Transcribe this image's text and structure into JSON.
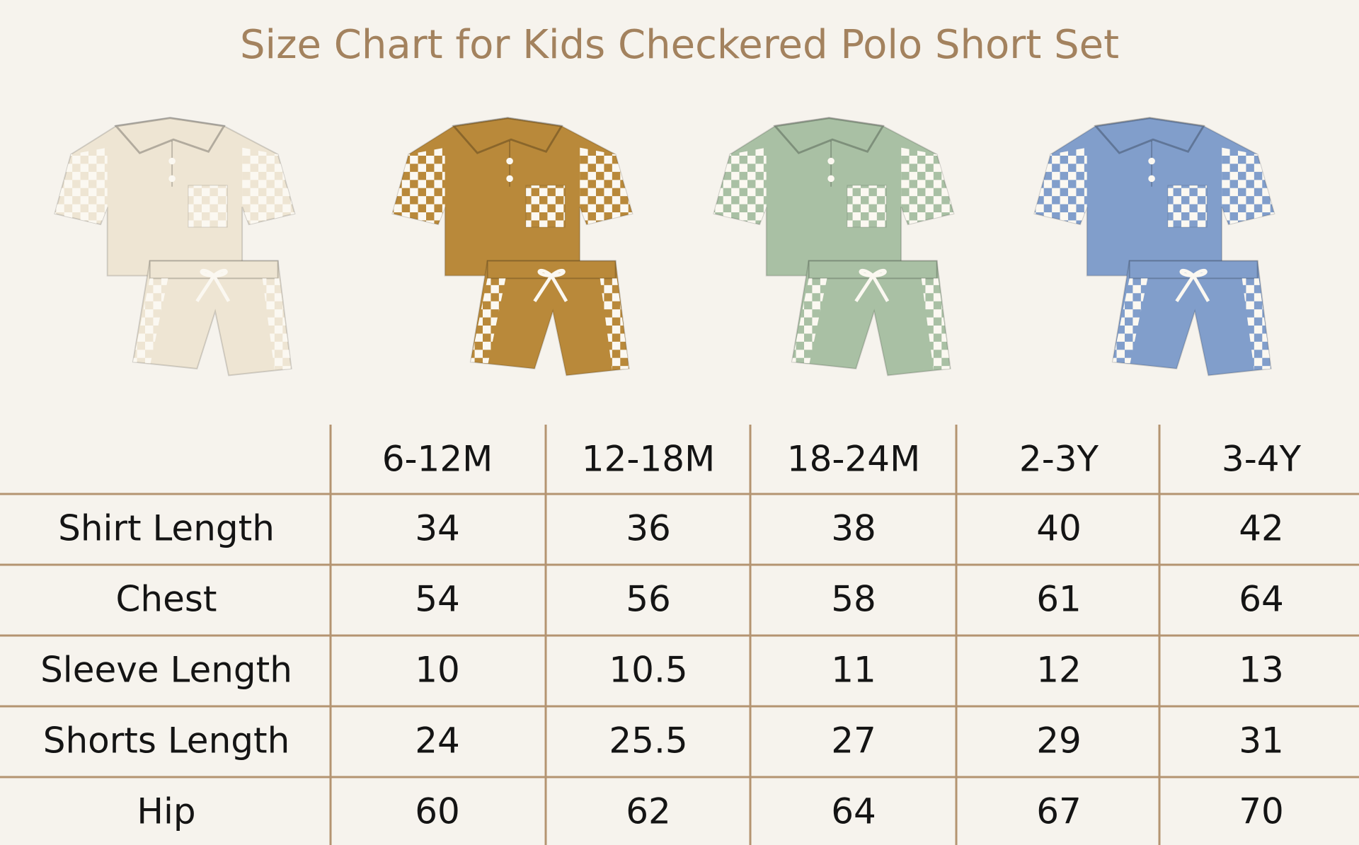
{
  "header": {
    "title": "Size Chart for Kids Checkered Polo Short Set"
  },
  "table": {
    "columns": [
      "6-12M",
      "12-18M",
      "18-24M",
      "2-3Y",
      "3-4Y"
    ],
    "rows": [
      {
        "label": "Shirt Length",
        "values": [
          34,
          36,
          38,
          40,
          42
        ]
      },
      {
        "label": "Chest",
        "values": [
          54,
          56,
          58,
          61,
          64
        ]
      },
      {
        "label": "Sleeve Length",
        "values": [
          10,
          10.5,
          11,
          12,
          13
        ]
      },
      {
        "label": "Shorts Length",
        "values": [
          24,
          25.5,
          27,
          29,
          31
        ]
      },
      {
        "label": "Hip",
        "values": [
          60,
          62,
          64,
          67,
          70
        ]
      }
    ]
  }
}
